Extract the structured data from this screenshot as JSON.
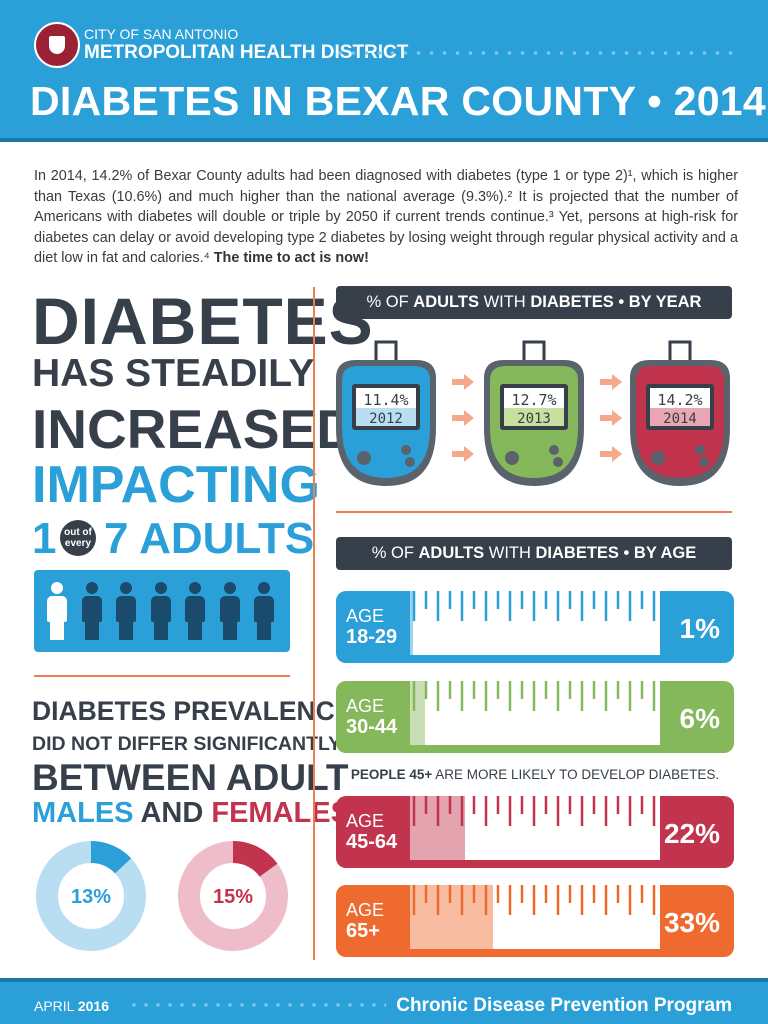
{
  "header": {
    "org_line1": "CITY OF SAN ANTONIO",
    "org_line2": "METROPOLITAN HEALTH DISTRICT",
    "title": "DIABETES IN BEXAR COUNTY • 2014"
  },
  "intro": {
    "text": "In 2014, 14.2% of Bexar County adults had been diagnosed with diabetes (type 1 or type 2)¹, which is higher than Texas (10.6%) and much higher than the national average (9.3%).² It is projected that the number of Americans with diabetes will double or triple by 2050 if current trends continue.³ Yet, persons at high-risk for diabetes can delay or avoid developing type 2 diabetes by losing weight through regular physical activity and a diet low in fat and calories.⁴ ",
    "emphasis": "The time to act is now!"
  },
  "headline": {
    "line1": "DIABETES",
    "line2": "HAS STEADILY",
    "line3": "INCREASED",
    "line4": "IMPACTING",
    "one": "1",
    "out_of": "out of",
    "every": "every",
    "seven_adults": "7 ADULTS"
  },
  "sex_section": {
    "line1": "DIABETES PREVALENCE",
    "line2": "DID NOT DIFFER SIGNIFICANTLY",
    "line3": "BETWEEN ADULT",
    "males": "MALES",
    "and": " AND ",
    "females": "FEMALES"
  },
  "year_section": {
    "head_pre": "% OF ",
    "head_adults": "ADULTS",
    "head_mid": " WITH ",
    "head_diabetes": "DIABETES",
    "head_post": " • BY YEAR"
  },
  "age_section": {
    "head_pre": "% OF ",
    "head_adults": "ADULTS",
    "head_mid": " WITH ",
    "head_diabetes": "DIABETES",
    "head_post": " • BY AGE",
    "age_word": "AGE",
    "note_bold": "PEOPLE 45+",
    "note_rest": " ARE MORE LIKELY TO DEVELOP DIABETES."
  },
  "colors": {
    "blue": "#2a9fd8",
    "dark": "#363f4a",
    "green": "#85b85b",
    "red": "#c2334d",
    "orange": "#ef6a2e",
    "accent_line": "#ef7e52"
  },
  "chart_data": [
    {
      "type": "bar",
      "title": "% OF ADULTS WITH DIABETES • BY YEAR",
      "categories": [
        "2012",
        "2013",
        "2014"
      ],
      "values": [
        11.4,
        12.7,
        14.2
      ],
      "labels": [
        "11.4%",
        "12.7%",
        "14.2%"
      ],
      "colors": [
        "#2a9fd8",
        "#85b85b",
        "#c2334d"
      ]
    },
    {
      "type": "bar",
      "title": "% OF ADULTS WITH DIABETES • BY AGE",
      "categories": [
        "18-29",
        "30-44",
        "45-64",
        "65+"
      ],
      "values": [
        1,
        6,
        22,
        33
      ],
      "labels": [
        "1%",
        "6%",
        "22%",
        "33%"
      ],
      "colors": [
        "#2a9fd8",
        "#85b85b",
        "#c2334d",
        "#ef6a2e"
      ],
      "ylim": [
        0,
        100
      ]
    },
    {
      "type": "pie",
      "title": "MALES AND FEMALES",
      "categories": [
        "MALES",
        "FEMALES"
      ],
      "values": [
        13,
        15
      ],
      "labels": [
        "13%",
        "15%"
      ],
      "colors": [
        "#2a9fd8",
        "#c2334d"
      ]
    },
    {
      "type": "bar",
      "title": "1 out of every 7 ADULTS",
      "categories": [
        "affected",
        "not affected"
      ],
      "values": [
        1,
        6
      ]
    }
  ],
  "footer": {
    "month": "APRIL ",
    "year": "2016",
    "program": "Chronic Disease Prevention Program"
  }
}
